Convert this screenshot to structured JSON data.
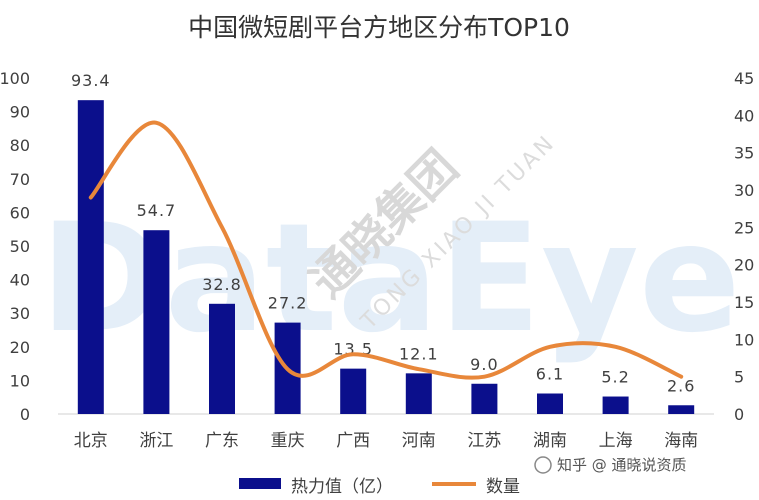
{
  "chart_data": {
    "type": "bar",
    "title": "中国微短剧平台方地区分布TOP10",
    "categories": [
      "北京",
      "浙江",
      "广东",
      "重庆",
      "广西",
      "河南",
      "江苏",
      "湖南",
      "上海",
      "海南"
    ],
    "series": [
      {
        "name": "热力值（亿）",
        "type": "bar",
        "axis": "left",
        "color": "#0b0f8c",
        "values": [
          93.4,
          54.7,
          32.8,
          27.2,
          13.5,
          12.1,
          9.0,
          6.1,
          5.2,
          2.6
        ],
        "labels": [
          "93.4",
          "54.7",
          "32.8",
          "27.2",
          "13.5",
          "12.1",
          "9.0",
          "6.1",
          "5.2",
          "2.6"
        ]
      },
      {
        "name": "数量",
        "type": "line",
        "smooth": true,
        "axis": "right",
        "color": "#e8873a",
        "values": [
          29,
          39,
          25,
          6,
          8,
          6,
          5,
          9,
          9,
          5
        ]
      }
    ],
    "y_left": {
      "range": [
        0,
        100
      ],
      "ticks": [
        "0",
        "10",
        "20",
        "30",
        "40",
        "50",
        "60",
        "70",
        "80",
        "90",
        "100"
      ]
    },
    "y_right": {
      "range": [
        0,
        45
      ],
      "ticks": [
        "0",
        "5",
        "10",
        "15",
        "20",
        "25",
        "30",
        "35",
        "40",
        "45"
      ]
    },
    "grid": false,
    "legend_position": "bottom-center"
  },
  "watermarks": {
    "background_text": "DataEye",
    "group_name": "通晓集团",
    "group_pinyin": "TONG XIAO JI TUAN"
  },
  "footer": {
    "source_mark": "知乎 @ 通晓说资质"
  }
}
